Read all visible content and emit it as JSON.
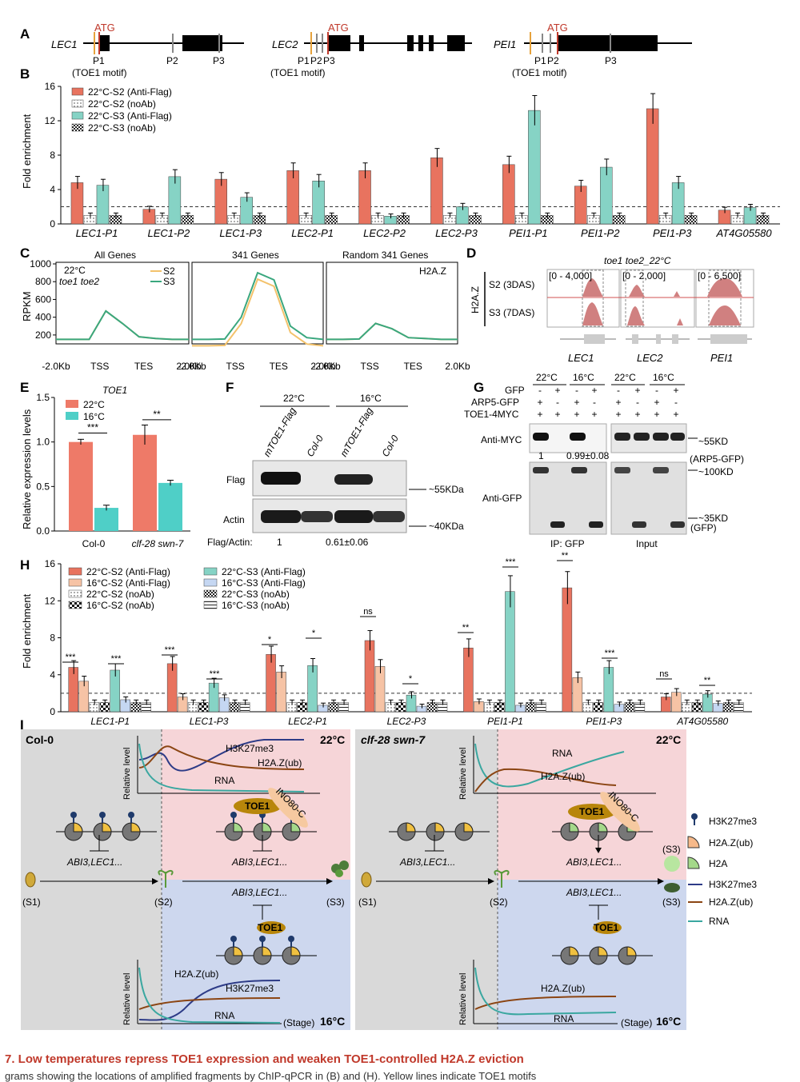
{
  "panelA": {
    "label": "A",
    "genes": [
      {
        "name": "LEC1",
        "atg": "ATG",
        "primers": [
          "P1",
          "P2",
          "P3"
        ],
        "note": "(TOE1 motif)"
      },
      {
        "name": "LEC2",
        "atg": "ATG",
        "primers": [
          "P1",
          "P2",
          "P3"
        ],
        "note": "(TOE1 motif)"
      },
      {
        "name": "PEI1",
        "atg": "ATG",
        "primers": [
          "P1",
          "P2",
          "P3"
        ],
        "note": "(TOE1 motif)"
      }
    ]
  },
  "panelB": {
    "label": "B",
    "ylabel": "Fold enrichment",
    "yticks": [
      "0",
      "4",
      "8",
      "12",
      "16"
    ],
    "legend": [
      "22°C-S2 (Anti-Flag)",
      "22°C-S2 (noAb)",
      "22°C-S3 (Anti-Flag)",
      "22°C-S3 (noAb)"
    ]
  },
  "panelC": {
    "label": "C",
    "ylabel": "RPKM",
    "titles": [
      "All Genes",
      "341 Genes",
      "Random 341 Genes"
    ],
    "yticks": [
      "200",
      "400",
      "600",
      "800",
      "1000"
    ],
    "xlabels": [
      "-2.0Kb",
      "TSS",
      "TES",
      "2.0Kb"
    ],
    "cond1": "22°C",
    "cond2": "toe1 toe2",
    "legend": [
      "S2",
      "S3"
    ],
    "mark": "H2A.Z"
  },
  "panelD": {
    "label": "D",
    "title": "toe1 toe2_22°C",
    "side": "H2A.Z",
    "rows": [
      "S2 (3DAS)",
      "S3 (7DAS)"
    ],
    "ranges": [
      "[0 - 4,000]",
      "[0 - 2,000]",
      "[0 - 6,500]"
    ],
    "genes": [
      "LEC1",
      "LEC2",
      "PEI1"
    ]
  },
  "panelE": {
    "label": "E",
    "title": "TOE1",
    "ylabel": "Relative expression levels",
    "yticks": [
      "0.0",
      "0.5",
      "1.0",
      "1.5"
    ],
    "legend": [
      "22°C",
      "16°C"
    ],
    "groups": [
      "Col-0",
      "clf-28 swn-7"
    ],
    "sig": [
      "***",
      "**"
    ]
  },
  "panelF": {
    "label": "F",
    "temps": [
      "22°C",
      "16°C"
    ],
    "lanes": [
      "mTOE1-Flag",
      "Col-0",
      "mTOE1-Flag",
      "Col-0"
    ],
    "rows": [
      "Flag",
      "Actin"
    ],
    "sizes": [
      "~55KDa",
      "~40KDa"
    ],
    "ratioLabel": "Flag/Actin:",
    "ratios": [
      "1",
      "0.61±0.06"
    ]
  },
  "panelG": {
    "label": "G",
    "temps": [
      "22°C",
      "16°C",
      "22°C",
      "16°C"
    ],
    "rowLabels": [
      "GFP",
      "ARP5-GFP",
      "TOE1-4MYC"
    ],
    "gfp": [
      "-",
      "+",
      "-",
      "+",
      "-",
      "+",
      "-",
      "+"
    ],
    "arp5": [
      "+",
      "-",
      "+",
      "-",
      "+",
      "-",
      "+",
      "-"
    ],
    "toe1": [
      "+",
      "+",
      "+",
      "+",
      "+",
      "+",
      "+",
      "+"
    ],
    "blots": [
      "Anti-MYC",
      "Anti-GFP"
    ],
    "values": [
      "1",
      "0.99±0.08"
    ],
    "sizes": [
      "~55KD",
      "(ARP5-GFP)",
      "~100KD",
      "~35KD",
      "(GFP)"
    ],
    "footers": [
      "IP: GFP",
      "Input"
    ]
  },
  "panelH": {
    "label": "H",
    "ylabel": "Fold enrichment",
    "yticks": [
      "0",
      "4",
      "8",
      "12",
      "16"
    ],
    "legend": [
      "22°C-S2 (Anti-Flag)",
      "16°C-S2 (Anti-Flag)",
      "22°C-S2 (noAb)",
      "16°C-S2 (noAb)",
      "22°C-S3 (Anti-Flag)",
      "16°C-S3 (Anti-Flag)",
      "22°C-S3 (noAb)",
      "16°C-S3 (noAb)"
    ]
  },
  "panelI": {
    "label": "I",
    "left": "Col-0",
    "right": "clf-28 swn-7",
    "t22": "22°C",
    "t16": "16°C",
    "curves": [
      "H3K27me3",
      "H2A.Z(ub)",
      "RNA"
    ],
    "ylabel": "Relative level",
    "stage": "(Stage)",
    "targets": "ABI3,LEC1...",
    "toe1": "TOE1",
    "ino80": "INO80-C",
    "stages": [
      "(S1)",
      "(S2)",
      "(S3)"
    ],
    "legend": [
      "H3K27me3",
      "H2A.Z(ub)",
      "H2A",
      "H3K27me3",
      "H2A.Z(ub)",
      "RNA"
    ]
  },
  "caption": "7. Low temperatures repress TOE1 expression and weaken TOE1-controlled H2A.Z eviction",
  "caption2": "grams showing the locations of amplified fragments by ChIP-qPCR in (B) and (H). Yellow lines indicate TOE1 motifs",
  "chart_data": [
    {
      "type": "bar",
      "title": "",
      "ylabel": "Fold enrichment",
      "ylim": [
        0,
        16
      ],
      "categories": [
        "LEC1-P1",
        "LEC1-P2",
        "LEC1-P3",
        "LEC2-P1",
        "LEC2-P2",
        "LEC2-P3",
        "PEI1-P1",
        "PEI1-P2",
        "PEI1-P3",
        "AT4G05580"
      ],
      "series": [
        {
          "name": "22°C-S2 (Anti-Flag)",
          "values": [
            4.8,
            1.7,
            5.2,
            6.2,
            6.2,
            7.7,
            6.9,
            4.4,
            13.4,
            1.6
          ]
        },
        {
          "name": "22°C-S2 (noAb)",
          "values": [
            1.0,
            1.0,
            1.0,
            1.0,
            1.0,
            1.0,
            1.0,
            1.0,
            1.0,
            1.0
          ]
        },
        {
          "name": "22°C-S3 (Anti-Flag)",
          "values": [
            4.5,
            5.5,
            3.1,
            5.0,
            0.9,
            2.0,
            13.2,
            6.6,
            4.8,
            1.9
          ]
        },
        {
          "name": "22°C-S3 (noAb)",
          "values": [
            1.0,
            1.0,
            1.0,
            1.0,
            1.0,
            1.0,
            1.0,
            1.0,
            1.0,
            1.0
          ]
        }
      ]
    },
    {
      "type": "line",
      "title": "",
      "ylabel": "RPKM",
      "ylim": [
        100,
        1000
      ],
      "series": [
        {
          "name": "S2",
          "values": [
            150,
            150,
            150,
            470,
            330,
            180,
            160,
            150,
            150
          ]
        },
        {
          "name": "S3",
          "values": [
            150,
            150,
            150,
            470,
            330,
            180,
            160,
            150,
            150
          ]
        }
      ]
    },
    {
      "type": "bar",
      "title": "TOE1",
      "ylabel": "Relative expression levels",
      "ylim": [
        0,
        1.5
      ],
      "categories": [
        "Col-0",
        "clf-28 swn-7"
      ],
      "series": [
        {
          "name": "22°C",
          "values": [
            1.0,
            1.08
          ]
        },
        {
          "name": "16°C",
          "values": [
            0.26,
            0.54
          ]
        }
      ]
    },
    {
      "type": "bar",
      "title": "",
      "ylabel": "Fold enrichment",
      "ylim": [
        0,
        16
      ],
      "categories": [
        "LEC1-P1",
        "LEC1-P3",
        "LEC2-P1",
        "LEC2-P3",
        "PEI1-P1",
        "PEI1-P3",
        "AT4G05580"
      ],
      "series": [
        {
          "name": "22°C-S2 (Anti-Flag)",
          "values": [
            4.8,
            5.2,
            6.2,
            7.7,
            6.9,
            13.4,
            1.6
          ]
        },
        {
          "name": "16°C-S2 (Anti-Flag)",
          "values": [
            3.3,
            1.6,
            4.3,
            4.9,
            1.1,
            3.7,
            2.1
          ]
        },
        {
          "name": "22°C-S2 (noAb)",
          "values": [
            1.0,
            1.0,
            1.0,
            1.0,
            1.0,
            1.0,
            1.0
          ]
        },
        {
          "name": "16°C-S2 (noAb)",
          "values": [
            1.0,
            1.0,
            1.0,
            1.0,
            1.0,
            1.0,
            1.0
          ]
        },
        {
          "name": "22°C-S3 (Anti-Flag)",
          "values": [
            4.5,
            3.1,
            5.0,
            1.8,
            13.0,
            4.8,
            1.9
          ]
        },
        {
          "name": "16°C-S3 (Anti-Flag)",
          "values": [
            1.3,
            1.5,
            0.7,
            0.6,
            0.7,
            0.8,
            0.9
          ]
        },
        {
          "name": "22°C-S3 (noAb)",
          "values": [
            1.0,
            1.0,
            1.0,
            1.0,
            1.0,
            1.0,
            1.0
          ]
        },
        {
          "name": "16°C-S3 (noAb)",
          "values": [
            1.0,
            1.0,
            1.0,
            1.0,
            1.0,
            1.0,
            1.0
          ]
        }
      ]
    }
  ]
}
